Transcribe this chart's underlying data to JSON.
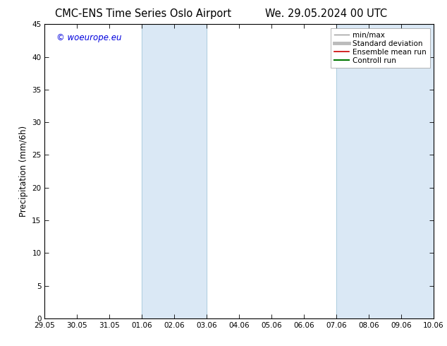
{
  "title_left": "CMC-ENS Time Series Oslo Airport",
  "title_right": "We. 29.05.2024 00 UTC",
  "ylabel": "Precipitation (mm/6h)",
  "watermark": "© woeurope.eu",
  "watermark_color": "#0000dd",
  "ylim": [
    0,
    45
  ],
  "yticks": [
    0,
    5,
    10,
    15,
    20,
    25,
    30,
    35,
    40,
    45
  ],
  "xlim_start": 0,
  "xlim_end": 12,
  "xtick_positions": [
    0,
    1,
    2,
    3,
    4,
    5,
    6,
    7,
    8,
    9,
    10,
    11,
    12
  ],
  "xtick_labels": [
    "29.05",
    "30.05",
    "31.05",
    "01.06",
    "02.06",
    "03.06",
    "04.06",
    "05.06",
    "06.06",
    "07.06",
    "08.06",
    "09.06",
    "10.06"
  ],
  "shaded_bands": [
    {
      "xmin": 3,
      "xmax": 5,
      "color": "#dae8f5"
    },
    {
      "xmin": 9,
      "xmax": 12,
      "color": "#dae8f5"
    }
  ],
  "band_border_color": "#b0cfe0",
  "legend_entries": [
    {
      "label": "min/max",
      "color": "#999999",
      "lw": 1.0,
      "ls": "-"
    },
    {
      "label": "Standard deviation",
      "color": "#bbbbbb",
      "lw": 3.5,
      "ls": "-"
    },
    {
      "label": "Ensemble mean run",
      "color": "#cc0000",
      "lw": 1.2,
      "ls": "-"
    },
    {
      "label": "Controll run",
      "color": "#007700",
      "lw": 1.5,
      "ls": "-"
    }
  ],
  "background_color": "#ffffff",
  "plot_bg_color": "#ffffff",
  "title_fontsize": 10.5,
  "tick_fontsize": 7.5,
  "ylabel_fontsize": 8.5,
  "legend_fontsize": 7.5
}
